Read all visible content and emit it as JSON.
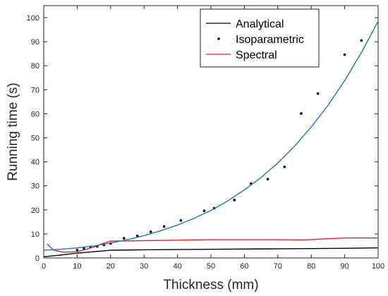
{
  "chart_data": {
    "type": "line",
    "title": "",
    "xlabel": "Thickness (mm)",
    "ylabel": "Running time (s)",
    "xlim": [
      0,
      100
    ],
    "ylim": [
      0,
      105
    ],
    "xticks": [
      0,
      10,
      20,
      30,
      40,
      50,
      60,
      70,
      80,
      90,
      100
    ],
    "yticks": [
      0,
      10,
      20,
      30,
      40,
      50,
      60,
      70,
      80,
      90,
      100
    ],
    "grid": false,
    "legend_position": "top-right",
    "legend": [
      "Analytical",
      "Isoparametric",
      "Spectral"
    ],
    "series": [
      {
        "name": "Analytical",
        "style": "line",
        "color": "#000000",
        "x": [
          0,
          5,
          10,
          15,
          20,
          25,
          30,
          40,
          50,
          60,
          70,
          80,
          90,
          100
        ],
        "y": [
          0.5,
          1.2,
          2.0,
          2.6,
          3.2,
          3.3,
          3.4,
          3.5,
          3.6,
          3.7,
          3.8,
          3.9,
          4.0,
          4.2
        ]
      },
      {
        "name": "Isoparametric",
        "style": "points",
        "color": "#000000",
        "x": [
          10,
          12,
          14,
          16,
          18,
          20,
          24,
          28,
          32,
          36,
          41,
          48,
          51,
          57,
          62,
          67,
          72,
          77,
          82,
          90,
          95
        ],
        "y": [
          3.3,
          4.0,
          4.6,
          4.8,
          5.4,
          6.0,
          8.2,
          9.2,
          10.9,
          13.1,
          15.6,
          19.6,
          20.7,
          24.1,
          30.9,
          32.8,
          37.9,
          60.1,
          68.4,
          84.6,
          90.5
        ]
      },
      {
        "name": "Spectral",
        "style": "line",
        "color": "#d62728",
        "x": [
          1,
          3,
          6,
          10,
          15,
          18,
          20,
          25,
          30,
          40,
          50,
          60,
          70,
          78,
          85,
          90,
          95,
          100
        ],
        "y": [
          5.8,
          3.2,
          2.4,
          2.6,
          4.5,
          6.2,
          7.0,
          7.1,
          7.2,
          7.4,
          7.6,
          7.6,
          7.6,
          7.5,
          8.0,
          8.3,
          8.3,
          8.3
        ]
      },
      {
        "name": "",
        "style": "line",
        "color": "#1f77b4",
        "x": [
          0,
          5,
          10,
          15,
          20,
          25,
          30,
          35,
          40,
          45,
          50,
          55,
          60,
          65,
          70,
          75,
          80,
          85,
          90,
          95,
          100,
          102
        ],
        "y": [
          3.2,
          3.6,
          4.2,
          5.0,
          6.2,
          7.6,
          9.3,
          11.3,
          13.7,
          16.5,
          19.8,
          23.7,
          28.3,
          33.5,
          39.5,
          46.5,
          54.5,
          63.5,
          73.8,
          85.5,
          98.5,
          104.5
        ]
      }
    ]
  }
}
